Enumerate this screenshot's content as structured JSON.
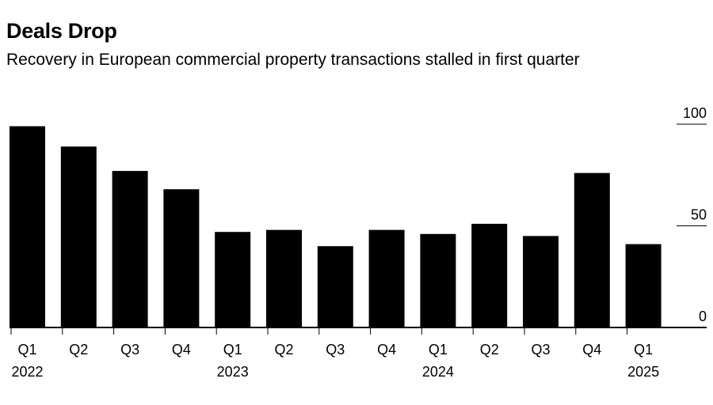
{
  "chart_data": {
    "type": "bar",
    "title": "Deals Drop",
    "subtitle": "Recovery in European commercial property transactions stalled in first quarter",
    "categories": [
      "Q1 2022",
      "Q2 2022",
      "Q3 2022",
      "Q4 2022",
      "Q1 2023",
      "Q2 2023",
      "Q3 2023",
      "Q4 2023",
      "Q1 2024",
      "Q2 2024",
      "Q3 2024",
      "Q4 2024",
      "Q1 2025"
    ],
    "quarter_labels": [
      "Q1",
      "Q2",
      "Q3",
      "Q4",
      "Q1",
      "Q2",
      "Q3",
      "Q4",
      "Q1",
      "Q2",
      "Q3",
      "Q4",
      "Q1"
    ],
    "year_labels": [
      "2022",
      "",
      "",
      "",
      "2023",
      "",
      "",
      "",
      "2024",
      "",
      "",
      "",
      "2025"
    ],
    "values": [
      99,
      89,
      77,
      68,
      47,
      48,
      40,
      48,
      46,
      51,
      45,
      76,
      41
    ],
    "y_ticks": [
      0,
      50,
      100
    ],
    "y_tick_labels": [
      "0",
      "50",
      "100"
    ],
    "ylim": [
      0,
      100
    ],
    "xlabel": "",
    "ylabel": "",
    "bar_color": "#000000"
  }
}
